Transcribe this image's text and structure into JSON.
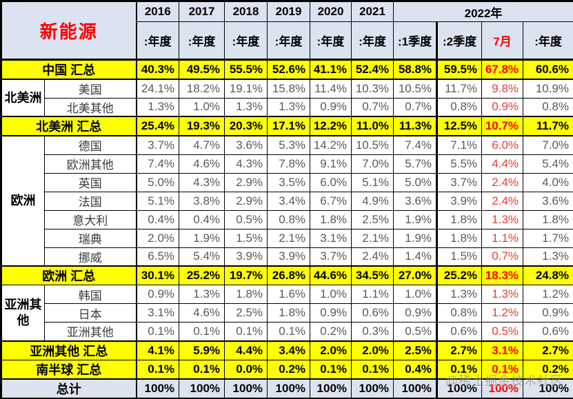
{
  "watermark": "@稀土掘金技术社区",
  "colors": {
    "header_bg": "#dbe3f0",
    "summary_row_bg": "#ffff00",
    "total_row_bg": "#dbe3f0",
    "highlight_red": "#fe0000",
    "normal_value_gray": "#595959",
    "title_red": "#fe0000"
  },
  "chart_data": {
    "type": "table",
    "title": "新能源",
    "years": [
      "2016",
      "2017",
      "2018",
      "2019",
      "2020",
      "2021"
    ],
    "year_group_label": "2022年",
    "year_group_span": 4,
    "sub_headers": [
      ":年度",
      ":年度",
      ":年度",
      ":年度",
      ":年度",
      ":年度",
      ":1季度",
      ":2季度",
      "7月",
      ":年度"
    ],
    "highlight_col_index": 8,
    "rows": [
      {
        "kind": "summary",
        "label": "中国 汇总",
        "values": [
          "40.3%",
          "49.5%",
          "55.5%",
          "52.6%",
          "41.1%",
          "52.4%",
          "58.8%",
          "59.5%",
          "67.8%",
          "60.6%"
        ]
      },
      {
        "kind": "country",
        "region": "北美洲",
        "region_rows": 2,
        "label": "美国",
        "values": [
          "24.1%",
          "18.2%",
          "19.1%",
          "15.8%",
          "11.4%",
          "10.3%",
          "10.5%",
          "11.7%",
          "9.8%",
          "10.9%"
        ]
      },
      {
        "kind": "country",
        "label": "北美其他",
        "values": [
          "1.3%",
          "1.0%",
          "1.3%",
          "1.3%",
          "0.9%",
          "0.7%",
          "0.7%",
          "0.8%",
          "0.9%",
          "0.8%"
        ]
      },
      {
        "kind": "summary",
        "label": "北美洲 汇总",
        "values": [
          "25.4%",
          "19.3%",
          "20.3%",
          "17.1%",
          "12.2%",
          "11.0%",
          "11.3%",
          "12.5%",
          "10.7%",
          "11.7%"
        ]
      },
      {
        "kind": "country",
        "region": "欧洲",
        "region_rows": 7,
        "label": "德国",
        "values": [
          "3.7%",
          "4.7%",
          "3.6%",
          "5.3%",
          "14.2%",
          "10.5%",
          "7.4%",
          "7.1%",
          "6.0%",
          "7.0%"
        ]
      },
      {
        "kind": "country",
        "label": "欧洲其他",
        "values": [
          "7.4%",
          "4.6%",
          "4.3%",
          "7.8%",
          "9.1%",
          "7.0%",
          "5.7%",
          "5.5%",
          "4.4%",
          "5.4%"
        ]
      },
      {
        "kind": "country",
        "label": "英国",
        "values": [
          "5.0%",
          "4.3%",
          "2.9%",
          "3.5%",
          "6.0%",
          "5.1%",
          "5.0%",
          "3.7%",
          "2.4%",
          "4.0%"
        ]
      },
      {
        "kind": "country",
        "label": "法国",
        "values": [
          "5.1%",
          "3.8%",
          "2.9%",
          "3.4%",
          "6.7%",
          "4.9%",
          "3.6%",
          "3.9%",
          "2.4%",
          "3.6%"
        ]
      },
      {
        "kind": "country",
        "label": "意大利",
        "values": [
          "0.4%",
          "0.4%",
          "0.5%",
          "0.8%",
          "1.8%",
          "2.5%",
          "1.9%",
          "1.8%",
          "1.3%",
          "1.8%"
        ]
      },
      {
        "kind": "country",
        "label": "瑞典",
        "values": [
          "2.0%",
          "1.9%",
          "1.5%",
          "2.1%",
          "3.1%",
          "2.1%",
          "1.9%",
          "1.8%",
          "1.1%",
          "1.7%"
        ]
      },
      {
        "kind": "country",
        "label": "挪威",
        "values": [
          "6.5%",
          "5.4%",
          "3.9%",
          "3.9%",
          "3.7%",
          "2.4%",
          "1.4%",
          "1.5%",
          "0.7%",
          "1.3%"
        ]
      },
      {
        "kind": "summary",
        "label": "欧洲 汇总",
        "values": [
          "30.1%",
          "25.2%",
          "19.7%",
          "26.8%",
          "44.6%",
          "34.5%",
          "27.0%",
          "25.2%",
          "18.3%",
          "24.8%"
        ]
      },
      {
        "kind": "country",
        "region": "亚洲其他",
        "region_rows": 3,
        "label": "韩国",
        "values": [
          "0.9%",
          "1.3%",
          "1.8%",
          "1.6%",
          "1.0%",
          "1.1%",
          "1.0%",
          "1.3%",
          "1.3%",
          "1.2%"
        ]
      },
      {
        "kind": "country",
        "label": "日本",
        "values": [
          "3.1%",
          "4.6%",
          "2.5%",
          "1.8%",
          "0.9%",
          "0.6%",
          "0.9%",
          "0.8%",
          "1.2%",
          "0.9%"
        ]
      },
      {
        "kind": "country",
        "label": "亚洲其他",
        "values": [
          "0.1%",
          "0.1%",
          "0.1%",
          "0.1%",
          "0.2%",
          "0.3%",
          "0.5%",
          "0.6%",
          "0.5%",
          "0.6%"
        ]
      },
      {
        "kind": "summary",
        "label": "亚洲其他 汇总",
        "values": [
          "4.1%",
          "5.9%",
          "4.4%",
          "3.4%",
          "2.0%",
          "2.0%",
          "2.5%",
          "2.7%",
          "3.1%",
          "2.7%"
        ]
      },
      {
        "kind": "summary",
        "label": "南半球 汇总",
        "values": [
          "0.1%",
          "0.1%",
          "0.0%",
          "0.2%",
          "0.1%",
          "0.1%",
          "0.4%",
          "0.1%",
          "0.1%",
          "0.2%"
        ]
      },
      {
        "kind": "total",
        "label": "总计",
        "values": [
          "100%",
          "100%",
          "100%",
          "100%",
          "100%",
          "100%",
          "100%",
          "100%",
          "100%",
          "100%"
        ]
      }
    ]
  }
}
